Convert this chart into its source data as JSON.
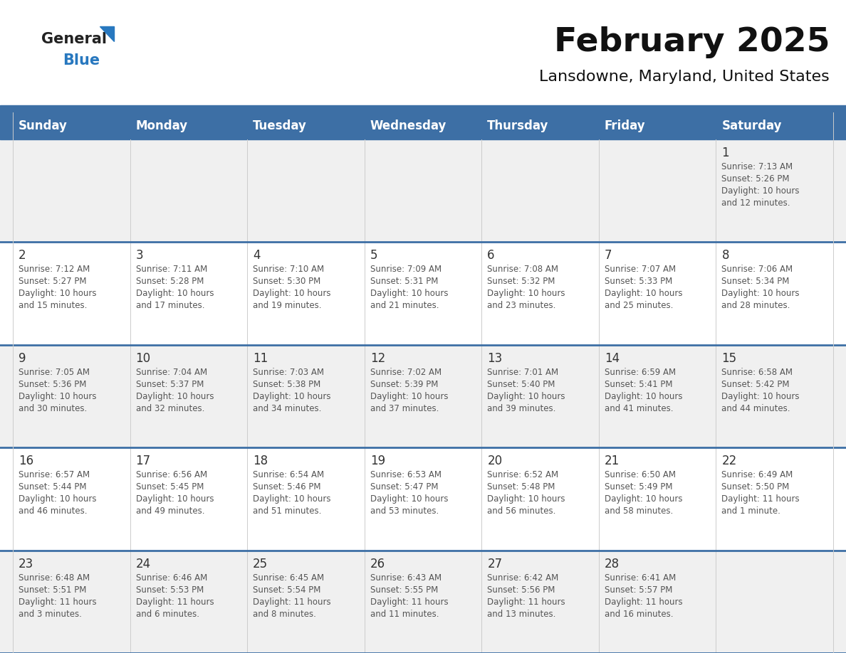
{
  "title": "February 2025",
  "subtitle": "Lansdowne, Maryland, United States",
  "header_bg": "#3d6fa5",
  "header_text": "#ffffff",
  "row_bg_odd": "#f0f0f0",
  "row_bg_even": "#ffffff",
  "border_color": "#3d6fa5",
  "thin_border_color": "#cccccc",
  "day_headers": [
    "Sunday",
    "Monday",
    "Tuesday",
    "Wednesday",
    "Thursday",
    "Friday",
    "Saturday"
  ],
  "cell_text_color": "#555555",
  "day_num_color": "#333333",
  "logo_general_color": "#222222",
  "logo_blue_color": "#2878bf",
  "title_color": "#111111",
  "subtitle_color": "#111111",
  "calendar": [
    [
      null,
      null,
      null,
      null,
      null,
      null,
      {
        "day": 1,
        "sunrise": "7:13 AM",
        "sunset": "5:26 PM",
        "daylight": "10 hours and 12 minutes."
      }
    ],
    [
      {
        "day": 2,
        "sunrise": "7:12 AM",
        "sunset": "5:27 PM",
        "daylight": "10 hours and 15 minutes."
      },
      {
        "day": 3,
        "sunrise": "7:11 AM",
        "sunset": "5:28 PM",
        "daylight": "10 hours and 17 minutes."
      },
      {
        "day": 4,
        "sunrise": "7:10 AM",
        "sunset": "5:30 PM",
        "daylight": "10 hours and 19 minutes."
      },
      {
        "day": 5,
        "sunrise": "7:09 AM",
        "sunset": "5:31 PM",
        "daylight": "10 hours and 21 minutes."
      },
      {
        "day": 6,
        "sunrise": "7:08 AM",
        "sunset": "5:32 PM",
        "daylight": "10 hours and 23 minutes."
      },
      {
        "day": 7,
        "sunrise": "7:07 AM",
        "sunset": "5:33 PM",
        "daylight": "10 hours and 25 minutes."
      },
      {
        "day": 8,
        "sunrise": "7:06 AM",
        "sunset": "5:34 PM",
        "daylight": "10 hours and 28 minutes."
      }
    ],
    [
      {
        "day": 9,
        "sunrise": "7:05 AM",
        "sunset": "5:36 PM",
        "daylight": "10 hours and 30 minutes."
      },
      {
        "day": 10,
        "sunrise": "7:04 AM",
        "sunset": "5:37 PM",
        "daylight": "10 hours and 32 minutes."
      },
      {
        "day": 11,
        "sunrise": "7:03 AM",
        "sunset": "5:38 PM",
        "daylight": "10 hours and 34 minutes."
      },
      {
        "day": 12,
        "sunrise": "7:02 AM",
        "sunset": "5:39 PM",
        "daylight": "10 hours and 37 minutes."
      },
      {
        "day": 13,
        "sunrise": "7:01 AM",
        "sunset": "5:40 PM",
        "daylight": "10 hours and 39 minutes."
      },
      {
        "day": 14,
        "sunrise": "6:59 AM",
        "sunset": "5:41 PM",
        "daylight": "10 hours and 41 minutes."
      },
      {
        "day": 15,
        "sunrise": "6:58 AM",
        "sunset": "5:42 PM",
        "daylight": "10 hours and 44 minutes."
      }
    ],
    [
      {
        "day": 16,
        "sunrise": "6:57 AM",
        "sunset": "5:44 PM",
        "daylight": "10 hours and 46 minutes."
      },
      {
        "day": 17,
        "sunrise": "6:56 AM",
        "sunset": "5:45 PM",
        "daylight": "10 hours and 49 minutes."
      },
      {
        "day": 18,
        "sunrise": "6:54 AM",
        "sunset": "5:46 PM",
        "daylight": "10 hours and 51 minutes."
      },
      {
        "day": 19,
        "sunrise": "6:53 AM",
        "sunset": "5:47 PM",
        "daylight": "10 hours and 53 minutes."
      },
      {
        "day": 20,
        "sunrise": "6:52 AM",
        "sunset": "5:48 PM",
        "daylight": "10 hours and 56 minutes."
      },
      {
        "day": 21,
        "sunrise": "6:50 AM",
        "sunset": "5:49 PM",
        "daylight": "10 hours and 58 minutes."
      },
      {
        "day": 22,
        "sunrise": "6:49 AM",
        "sunset": "5:50 PM",
        "daylight": "11 hours and 1 minute."
      }
    ],
    [
      {
        "day": 23,
        "sunrise": "6:48 AM",
        "sunset": "5:51 PM",
        "daylight": "11 hours and 3 minutes."
      },
      {
        "day": 24,
        "sunrise": "6:46 AM",
        "sunset": "5:53 PM",
        "daylight": "11 hours and 6 minutes."
      },
      {
        "day": 25,
        "sunrise": "6:45 AM",
        "sunset": "5:54 PM",
        "daylight": "11 hours and 8 minutes."
      },
      {
        "day": 26,
        "sunrise": "6:43 AM",
        "sunset": "5:55 PM",
        "daylight": "11 hours and 11 minutes."
      },
      {
        "day": 27,
        "sunrise": "6:42 AM",
        "sunset": "5:56 PM",
        "daylight": "11 hours and 13 minutes."
      },
      {
        "day": 28,
        "sunrise": "6:41 AM",
        "sunset": "5:57 PM",
        "daylight": "11 hours and 16 minutes."
      },
      null
    ]
  ]
}
